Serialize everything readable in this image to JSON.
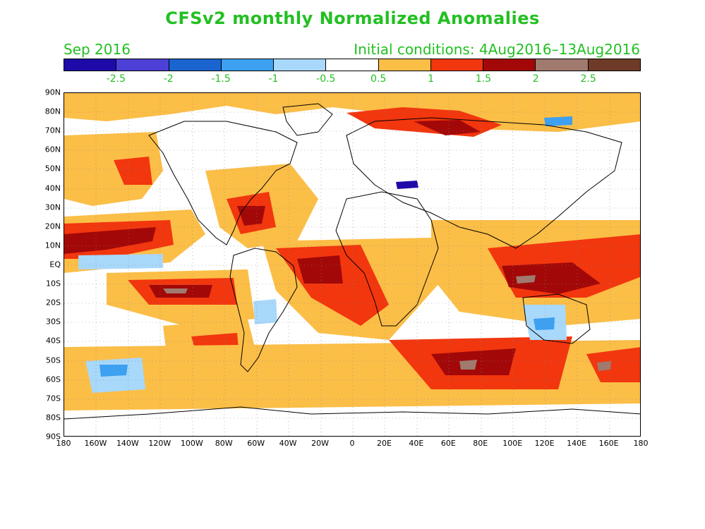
{
  "title": "CFSv2 monthly Normalized Anomalies",
  "month_label": "Sep 2016",
  "initial_conditions": "Initial conditions: 4Aug2016–13Aug2016",
  "colorbar": {
    "colors": [
      "#1e0aa8",
      "#4d40d6",
      "#1a64d0",
      "#3da0f0",
      "#a8d8fa",
      "#ffffff",
      "#fbbe47",
      "#f2360e",
      "#a30808",
      "#a07a6e",
      "#6e3b28"
    ],
    "labels": [
      "-2.5",
      "-2",
      "-1.5",
      "-1",
      "-0.5",
      "0.5",
      "1",
      "1.5",
      "2",
      "2.5"
    ]
  },
  "lat_labels": [
    "90N",
    "80N",
    "70N",
    "60N",
    "50N",
    "40N",
    "30N",
    "20N",
    "10N",
    "EQ",
    "10S",
    "20S",
    "30S",
    "40S",
    "50S",
    "60S",
    "70S",
    "80S",
    "90S"
  ],
  "lon_labels": [
    "180",
    "160W",
    "140W",
    "120W",
    "100W",
    "80W",
    "60W",
    "40W",
    "20W",
    "0",
    "20E",
    "40E",
    "60E",
    "80E",
    "100E",
    "120E",
    "140E",
    "160E",
    "180"
  ]
}
